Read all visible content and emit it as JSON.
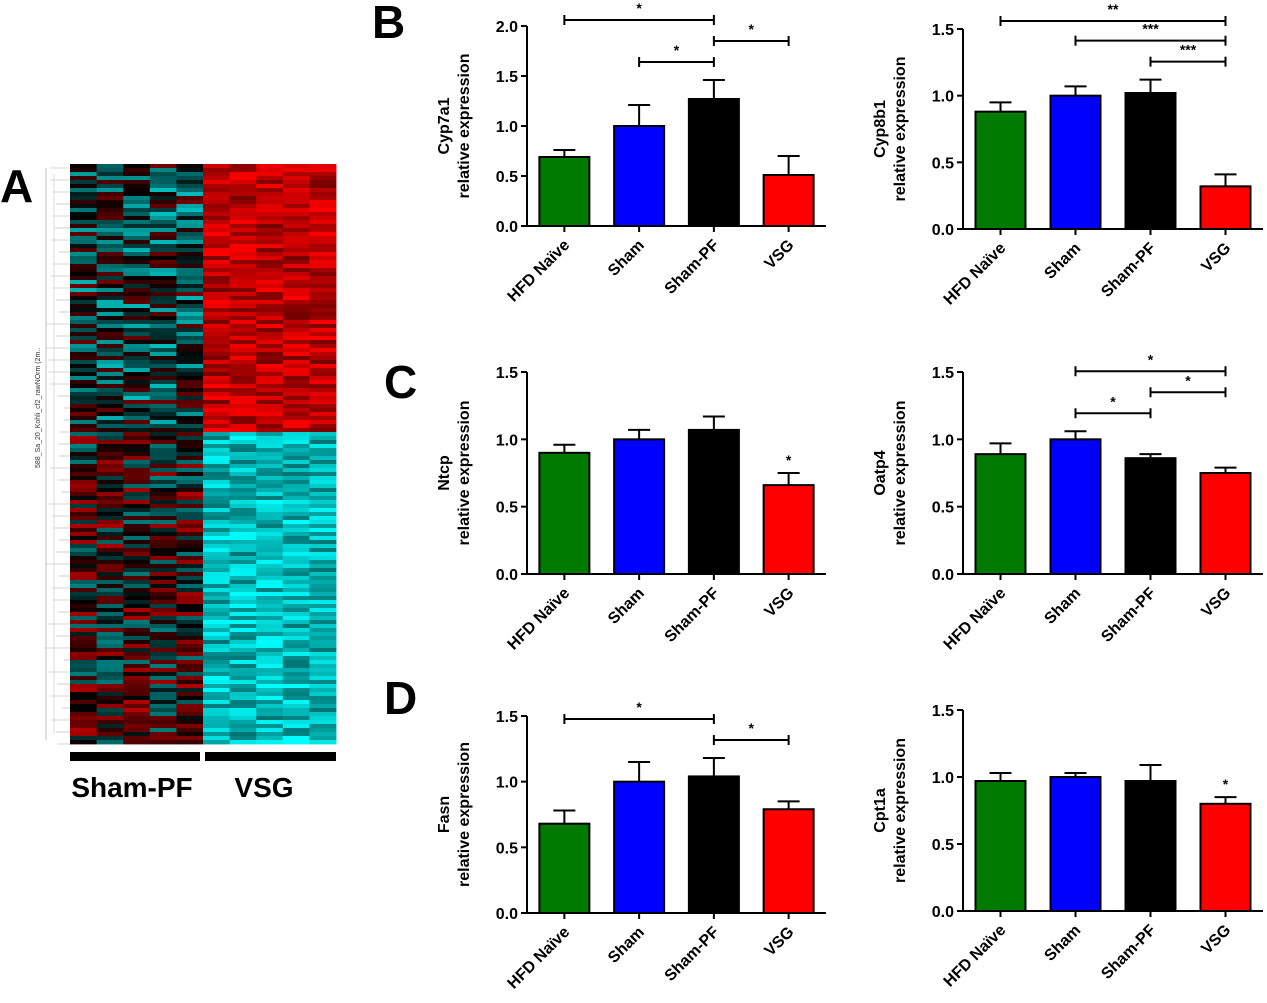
{
  "panel_letters": {
    "a": "A",
    "b": "B",
    "c": "C",
    "d": "D"
  },
  "heatmap": {
    "group_labels": [
      "Sham-PF",
      "VSG"
    ],
    "row_tree_label": "588_Sa_20_Kohli_cf2_rawNOrm (2m..",
    "colors": {
      "up": "#ff0000",
      "down": "#00ffff",
      "neutral": "#000000"
    }
  },
  "chart_data": [
    {
      "type": "bar",
      "panel": "B",
      "categories": [
        "HFD Naïve",
        "Sham",
        "Sham-PF",
        "VSG"
      ],
      "series": [
        {
          "values": [
            0.69,
            1.0,
            1.27,
            0.51
          ],
          "errors": [
            0.07,
            0.21,
            0.19,
            0.19
          ]
        }
      ],
      "ylabel": [
        "Cyp7a1",
        "relative expression"
      ],
      "ylim": [
        0,
        2.0
      ],
      "yticks": [
        "0.0",
        "0.5",
        "1.0",
        "1.5",
        "2.0"
      ],
      "significance": [
        {
          "from": 0,
          "to": 2,
          "label": "*"
        },
        {
          "from": 1,
          "to": 2,
          "label": "*"
        },
        {
          "from": 2,
          "to": 3,
          "label": "*"
        }
      ],
      "bar_colors": [
        "#007a00",
        "#0000ff",
        "#000000",
        "#ff0000"
      ]
    },
    {
      "type": "bar",
      "panel": "B",
      "categories": [
        "HFD Naïve",
        "Sham",
        "Sham-PF",
        "VSG"
      ],
      "series": [
        {
          "values": [
            0.88,
            1.0,
            1.02,
            0.32
          ],
          "errors": [
            0.07,
            0.07,
            0.1,
            0.09
          ]
        }
      ],
      "ylabel": [
        "Cyp8b1",
        "relative expression"
      ],
      "ylim": [
        0,
        1.5
      ],
      "yticks": [
        "0.0",
        "0.5",
        "1.0",
        "1.5"
      ],
      "significance": [
        {
          "from": 0,
          "to": 3,
          "label": "**"
        },
        {
          "from": 1,
          "to": 3,
          "label": "***"
        },
        {
          "from": 2,
          "to": 3,
          "label": "***"
        }
      ],
      "bar_colors": [
        "#007a00",
        "#0000ff",
        "#000000",
        "#ff0000"
      ]
    },
    {
      "type": "bar",
      "panel": "C",
      "categories": [
        "HFD Naïve",
        "Sham",
        "Sham-PF",
        "VSG"
      ],
      "series": [
        {
          "values": [
            0.9,
            1.0,
            1.07,
            0.66
          ],
          "errors": [
            0.06,
            0.07,
            0.1,
            0.09
          ]
        }
      ],
      "ylabel": [
        "Ntcp",
        "relative expression"
      ],
      "ylim": [
        0,
        1.5
      ],
      "yticks": [
        "0.0",
        "0.5",
        "1.0",
        "1.5"
      ],
      "annotations": [
        {
          "index": 3,
          "label": "*"
        }
      ],
      "bar_colors": [
        "#007a00",
        "#0000ff",
        "#000000",
        "#ff0000"
      ]
    },
    {
      "type": "bar",
      "panel": "C",
      "categories": [
        "HFD Naïve",
        "Sham",
        "Sham-PF",
        "VSG"
      ],
      "series": [
        {
          "values": [
            0.89,
            1.0,
            0.86,
            0.75
          ],
          "errors": [
            0.08,
            0.06,
            0.03,
            0.04
          ]
        }
      ],
      "ylabel": [
        "Oatp4",
        "relative expression"
      ],
      "ylim": [
        0,
        1.5
      ],
      "yticks": [
        "0.0",
        "0.5",
        "1.0",
        "1.5"
      ],
      "significance": [
        {
          "from": 1,
          "to": 3,
          "label": "*"
        },
        {
          "from": 1,
          "to": 2,
          "label": "*"
        },
        {
          "from": 2,
          "to": 3,
          "label": "*"
        }
      ],
      "bar_colors": [
        "#007a00",
        "#0000ff",
        "#000000",
        "#ff0000"
      ]
    },
    {
      "type": "bar",
      "panel": "D",
      "categories": [
        "HFD Naïve",
        "Sham",
        "Sham-PF",
        "VSG"
      ],
      "series": [
        {
          "values": [
            0.68,
            1.0,
            1.04,
            0.79
          ],
          "errors": [
            0.1,
            0.15,
            0.14,
            0.06
          ]
        }
      ],
      "ylabel": [
        "Fasn",
        "relative expression"
      ],
      "ylim": [
        0,
        1.5
      ],
      "yticks": [
        "0.0",
        "0.5",
        "1.0",
        "1.5"
      ],
      "significance": [
        {
          "from": 0,
          "to": 2,
          "label": "*"
        },
        {
          "from": 2,
          "to": 3,
          "label": "*"
        }
      ],
      "bar_colors": [
        "#007a00",
        "#0000ff",
        "#000000",
        "#ff0000"
      ]
    },
    {
      "type": "bar",
      "panel": "D",
      "categories": [
        "HFD Naïve",
        "Sham",
        "Sham-PF",
        "VSG"
      ],
      "series": [
        {
          "values": [
            0.97,
            1.0,
            0.97,
            0.8
          ],
          "errors": [
            0.06,
            0.03,
            0.12,
            0.05
          ]
        }
      ],
      "ylabel": [
        "Cpt1a",
        "relative expression"
      ],
      "ylim": [
        0,
        1.5
      ],
      "yticks": [
        "0.0",
        "0.5",
        "1.0",
        "1.5"
      ],
      "annotations": [
        {
          "index": 3,
          "label": "*"
        }
      ],
      "bar_colors": [
        "#007a00",
        "#0000ff",
        "#000000",
        "#ff0000"
      ]
    }
  ]
}
